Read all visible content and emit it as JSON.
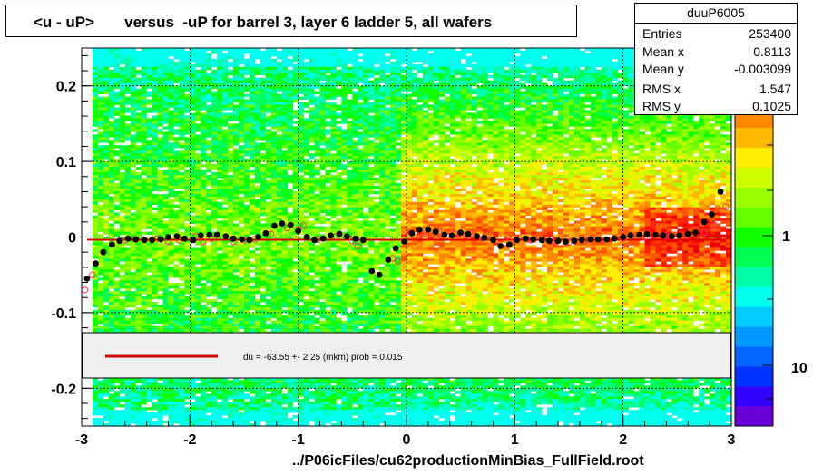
{
  "title": "<u - uP>       versus  -uP for barrel 3, layer 6 ladder 5, all wafers",
  "footer": "../P06icFiles/cu62productionMinBias_FullField.root",
  "stats": {
    "name": "duuP6005",
    "rows": [
      {
        "key": "Entries",
        "value": "253400"
      },
      {
        "key": "Mean x",
        "value": "0.8113"
      },
      {
        "key": "Mean y",
        "value": "-0.003099"
      },
      {
        "key": "RMS x",
        "value": "1.547"
      },
      {
        "key": "RMS y",
        "value": "0.1025"
      }
    ]
  },
  "legend_text": "du =  -63.55 +-  2.25 (mkm) prob = 0.015",
  "colors": {
    "fit_line": "#dd0000",
    "profile_points": "#000000",
    "open_markers": "#ff3366",
    "legend_bg": "#f0f0f0"
  },
  "chart_data": {
    "type": "heatmap",
    "xlim": [
      -3,
      3
    ],
    "ylim": [
      -0.25,
      0.25
    ],
    "x_ticks": [
      -3,
      -2,
      -1,
      0,
      1,
      2,
      3
    ],
    "x_tick_labels": [
      "-3",
      "-2",
      "-1",
      "0",
      "1",
      "2",
      "3"
    ],
    "y_ticks": [
      -0.2,
      -0.1,
      0,
      0.1,
      0.2
    ],
    "y_tick_labels": [
      "-0.2",
      "-0.1",
      "0",
      "0.1",
      "0.2"
    ],
    "grid": true,
    "z_scale": "log",
    "z_tick_labels": [
      "1",
      "10"
    ],
    "fit_line_y": -0.0036,
    "profile": {
      "x": [
        -2.95,
        -2.87,
        -2.8,
        -2.72,
        -2.65,
        -2.57,
        -2.5,
        -2.42,
        -2.35,
        -2.27,
        -2.2,
        -2.12,
        -2.05,
        -1.97,
        -1.9,
        -1.82,
        -1.75,
        -1.67,
        -1.6,
        -1.52,
        -1.45,
        -1.37,
        -1.3,
        -1.22,
        -1.15,
        -1.07,
        -1.0,
        -0.92,
        -0.85,
        -0.77,
        -0.7,
        -0.62,
        -0.55,
        -0.47,
        -0.4,
        -0.32,
        -0.25,
        -0.17,
        -0.1,
        -0.02,
        0.05,
        0.12,
        0.2,
        0.27,
        0.35,
        0.42,
        0.5,
        0.57,
        0.65,
        0.72,
        0.8,
        0.87,
        0.95,
        1.02,
        1.1,
        1.17,
        1.25,
        1.32,
        1.4,
        1.47,
        1.55,
        1.62,
        1.7,
        1.77,
        1.85,
        1.92,
        2.0,
        2.07,
        2.15,
        2.22,
        2.3,
        2.37,
        2.45,
        2.52,
        2.6,
        2.67,
        2.75,
        2.82,
        2.9
      ],
      "y": [
        -0.055,
        -0.035,
        -0.02,
        -0.01,
        -0.005,
        -0.002,
        -0.003,
        -0.004,
        -0.004,
        -0.003,
        0.0,
        0.001,
        -0.002,
        -0.004,
        0.002,
        0.003,
        0.003,
        0.001,
        -0.002,
        -0.003,
        -0.004,
        0.0,
        0.005,
        0.015,
        0.018,
        0.016,
        0.008,
        0.0,
        -0.004,
        -0.002,
        0.002,
        0.004,
        0.001,
        -0.002,
        -0.004,
        -0.045,
        -0.05,
        -0.03,
        -0.015,
        -0.006,
        0.005,
        0.01,
        0.01,
        0.007,
        0.003,
        0.002,
        0.006,
        0.004,
        0.001,
        -0.001,
        -0.004,
        -0.012,
        -0.01,
        -0.004,
        -0.002,
        -0.003,
        -0.004,
        -0.005,
        -0.005,
        -0.006,
        -0.005,
        -0.004,
        -0.003,
        -0.003,
        -0.003,
        -0.002,
        0.0,
        0.002,
        0.003,
        0.004,
        0.003,
        0.002,
        0.001,
        0.002,
        0.004,
        0.006,
        0.02,
        0.03,
        0.06
      ]
    },
    "open_markers": {
      "x": [
        -2.97,
        -2.9,
        -2.6,
        -2.5,
        -2.3,
        -2.2,
        -2.1,
        -1.95,
        -1.88,
        -1.8,
        -1.6,
        -1.5,
        -1.4,
        -1.25,
        -1.1,
        -1.0,
        -0.95,
        -0.82,
        -0.65,
        -0.5,
        -0.45,
        -0.13,
        -0.08,
        0.17,
        0.3,
        0.45,
        0.55,
        0.7,
        0.95,
        1.15,
        1.35,
        1.5,
        1.65,
        1.8,
        2.0,
        2.2,
        2.4,
        2.6,
        2.75,
        2.85,
        2.95
      ],
      "y": [
        -0.07,
        -0.05,
        -0.004,
        -0.003,
        -0.002,
        -0.006,
        -0.004,
        0.001,
        -0.006,
        -0.002,
        -0.006,
        -0.004,
        -0.003,
        0.004,
        0.012,
        0.01,
        0.015,
        -0.003,
        0.001,
        -0.005,
        -0.012,
        -0.028,
        -0.032,
        0.005,
        0.008,
        0.004,
        0.002,
        -0.002,
        -0.006,
        -0.004,
        -0.006,
        -0.007,
        -0.005,
        -0.004,
        -0.002,
        0.0,
        0.002,
        0.003,
        0.006,
        0.015,
        0.04
      ]
    }
  }
}
